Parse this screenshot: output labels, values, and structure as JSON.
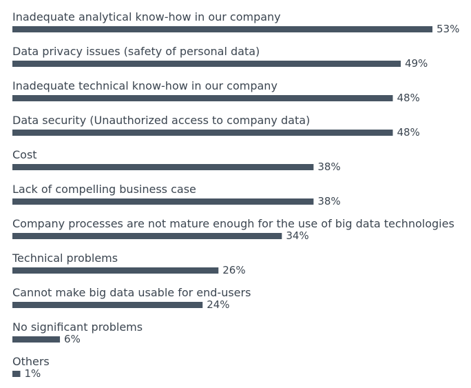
{
  "chart_data": {
    "type": "bar",
    "orientation": "horizontal",
    "bar_color": "#475563",
    "label_color": "#3b4550",
    "value_suffix": "%",
    "categories": [
      "Inadequate analytical know-how in our company",
      "Data privacy issues (safety of personal data)",
      "Inadequate technical know-how in our company",
      "Data security (Unauthorized access to company data)",
      "Cost",
      "Lack of compelling business case",
      "Company processes are not mature enough for the use of big data technologies",
      "Technical problems",
      "Cannot make big data usable for end-users",
      "No significant problems",
      "Others"
    ],
    "values": [
      53,
      49,
      48,
      48,
      38,
      38,
      34,
      26,
      24,
      6,
      1
    ],
    "value_labels": [
      "53%",
      "49%",
      "48%",
      "48%",
      "38%",
      "38%",
      "34%",
      "26%",
      "24%",
      "6%",
      "1%"
    ],
    "xlim": [
      0,
      53
    ],
    "grid": false,
    "legend": "none"
  }
}
